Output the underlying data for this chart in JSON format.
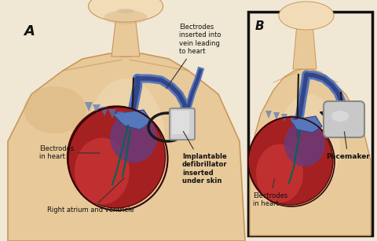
{
  "bg_color": "#f0e8d5",
  "fig_width": 4.8,
  "fig_height": 3.07,
  "dpi": 100,
  "label_A": "A",
  "label_B": "B",
  "text_electrodes_top": "Electrodes\ninserted into\nvein leading\nto heart",
  "text_electrodes_heart_A": "Electrodes\nin heart",
  "text_implantable": "Implantable\ndefibrillator\ninserted\nunder skin",
  "text_right_atrium": "Right atrium and ventricle",
  "text_pacemaker": "Pacemaker",
  "text_electrodes_heart_B": "Electrodes\nin heart",
  "skin_light": "#f0dbb8",
  "skin_mid": "#e8c99a",
  "skin_dark": "#c9975a",
  "skin_shadow": "#d4a870",
  "head_color": "#f2dcb8",
  "heart_red": "#a52020",
  "heart_bright": "#c03030",
  "heart_dark": "#6b0f0f",
  "heart_purple": "#6a3a7a",
  "vein_blue": "#5577bb",
  "vein_dark": "#334488",
  "wire_color": "#1a1a1a",
  "icd_color": "#d0d0d0",
  "icd_border": "#909090",
  "pacemaker_color": "#c8c8c8",
  "pacemaker_border": "#888888",
  "box_border": "#111111",
  "text_color": "#111111",
  "arrow_color": "#333333",
  "teal_wire": "#006655"
}
